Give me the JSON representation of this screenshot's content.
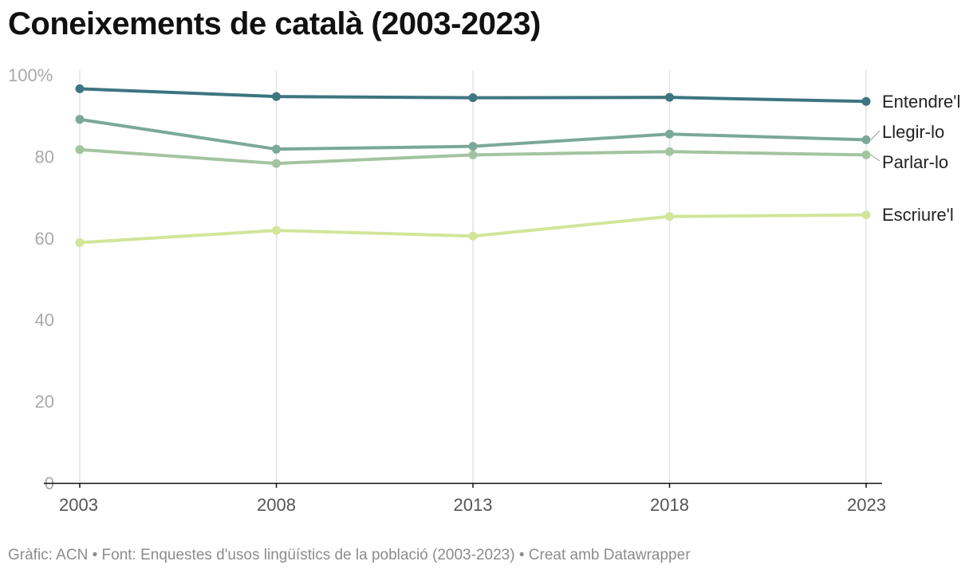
{
  "title": "Coneixements de català (2003-2023)",
  "footer": {
    "credit": "Gràfic: ACN",
    "separator": "•",
    "source": "Font: Enquestes d'usos lingüístics de la població (2003-2023)",
    "tool": "Creat amb Datawrapper"
  },
  "chart_data": {
    "type": "line",
    "title": "Coneixements de català (2003-2023)",
    "x": [
      "2003",
      "2008",
      "2013",
      "2018",
      "2023"
    ],
    "ylim": [
      0,
      100
    ],
    "yticks": [
      0,
      20,
      40,
      60,
      80,
      100
    ],
    "ytick_labels": [
      "0",
      "20",
      "40",
      "60",
      "80",
      "100%"
    ],
    "grid": "vertical",
    "legend": "direct labels at right end of lines",
    "series": [
      {
        "name": "Entendre'l",
        "color": "#3d7580",
        "values": [
          96.6,
          94.7,
          94.4,
          94.5,
          93.5
        ]
      },
      {
        "name": "Llegir-lo",
        "color": "#7ba899",
        "values": [
          89.1,
          81.8,
          82.5,
          85.5,
          84.1
        ]
      },
      {
        "name": "Parlar-lo",
        "color": "#a3c4a0",
        "values": [
          81.7,
          78.3,
          80.4,
          81.2,
          80.4
        ]
      },
      {
        "name": "Escriure'l",
        "color": "#d3e59a",
        "values": [
          58.9,
          61.9,
          60.5,
          65.3,
          65.7
        ]
      }
    ]
  }
}
